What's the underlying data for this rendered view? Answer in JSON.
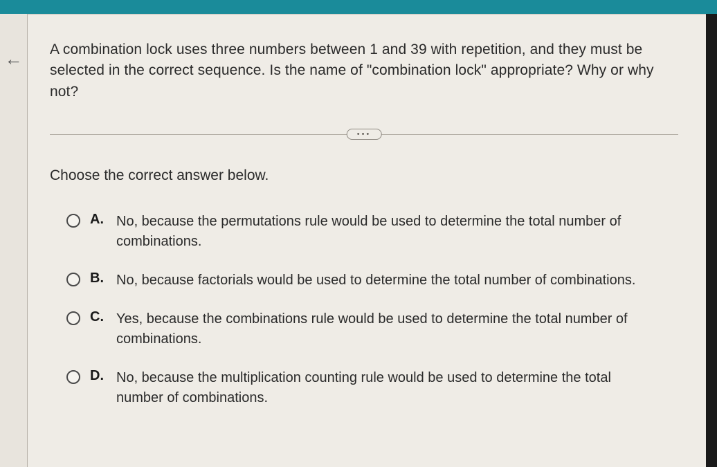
{
  "colors": {
    "top_bar": "#1a8b9a",
    "page_bg": "#efece6",
    "rail_bg": "#e8e4dd",
    "text": "#2a2a2a",
    "divider": "#b0aba2",
    "radio_border": "#4a4a4a"
  },
  "nav": {
    "arrow_glyph": "←"
  },
  "question": {
    "prompt": "A combination lock uses three numbers between 1 and 39 with repetition, and they must be selected in the correct sequence. Is the name of \"combination lock\" appropriate? Why or why not?",
    "divider_label": "•••",
    "instruction": "Choose the correct answer below."
  },
  "options": [
    {
      "letter": "A.",
      "text": "No, because the permutations rule would be used to determine the total number of combinations."
    },
    {
      "letter": "B.",
      "text": "No, because factorials would be used to determine the total number of combinations."
    },
    {
      "letter": "C.",
      "text": "Yes, because the combinations rule would be used to determine the total number of combinations."
    },
    {
      "letter": "D.",
      "text": "No, because the multiplication counting rule would be used to determine the total number of combinations."
    }
  ]
}
